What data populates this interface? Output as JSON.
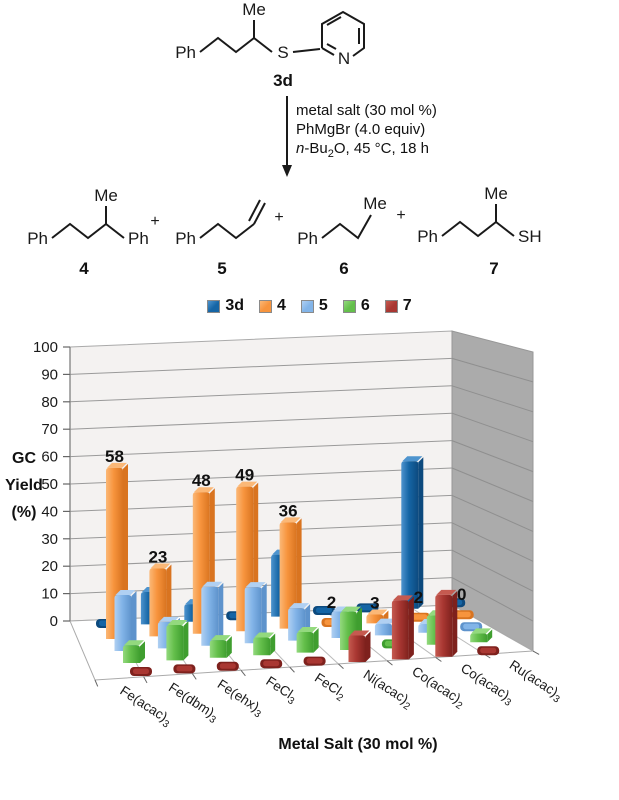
{
  "scheme": {
    "labels": {
      "ph": "Ph",
      "me": "Me",
      "s": "S",
      "n": "N",
      "sh": "SH",
      "plus": "+"
    },
    "substrate_label": "3d",
    "conditions": {
      "line1": "metal salt (30 mol %)",
      "line2": "PhMgBr (4.0 equiv)",
      "line3_italic": "n",
      "line3_mid": "-Bu",
      "line3_sub": "2",
      "line3_rest": "O, 45 °C, 18 h"
    },
    "products": [
      {
        "label": "4"
      },
      {
        "label": "5"
      },
      {
        "label": "6"
      },
      {
        "label": "7"
      }
    ]
  },
  "legend": [
    {
      "label": "3d",
      "color": "#1565a5",
      "light": "#4e94ce"
    },
    {
      "label": "4",
      "color": "#f7943d",
      "light": "#fbb877"
    },
    {
      "label": "5",
      "color": "#82b4e8",
      "light": "#b0d0f2"
    },
    {
      "label": "6",
      "color": "#64bf4b",
      "light": "#93d97e"
    },
    {
      "label": "7",
      "color": "#a93732",
      "light": "#c55a50"
    }
  ],
  "chart_data": {
    "type": "bar",
    "projection": "3d",
    "title": "",
    "ylabel": "GC Yield (%)",
    "ylabel_lines": [
      "GC",
      "Yield",
      "(%)"
    ],
    "xlabel": "Metal Salt (30 mol %)",
    "ylim": [
      0,
      100
    ],
    "ytick_step": 10,
    "grid": true,
    "legend_position": "top",
    "categories": [
      "Fe(acac)3",
      "Fe(dbm)3",
      "Fe(ehx)3",
      "FeCl3",
      "FeCl2",
      "Ni(acac)2",
      "Co(acac)2",
      "Co(acac)3",
      "Ru(acac)3"
    ],
    "categories_rich": [
      {
        "text": "Fe(acac)",
        "sub": "3"
      },
      {
        "text": "Fe(dbm)",
        "sub": "3"
      },
      {
        "text": "Fe(ehx)",
        "sub": "3"
      },
      {
        "text": "FeCl",
        "sub": "3"
      },
      {
        "text": "FeCl",
        "sub": "2"
      },
      {
        "text": "Ni(acac)",
        "sub": "2"
      },
      {
        "text": "Co(acac)",
        "sub": "2"
      },
      {
        "text": "Co(acac)",
        "sub": "3"
      },
      {
        "text": "Ru(acac)",
        "sub": "3"
      }
    ],
    "series": [
      {
        "name": "3d",
        "color": "#1565a5",
        "light": "#4e94ce",
        "dark": "#0d4a7e",
        "labeled": false,
        "values": [
          2,
          11,
          6,
          2,
          21,
          1,
          2,
          50,
          2
        ]
      },
      {
        "name": "4",
        "color": "#f7943d",
        "light": "#fbb877",
        "dark": "#d97420",
        "labeled": true,
        "values": [
          58,
          23,
          48,
          49,
          36,
          2,
          3,
          2,
          0
        ]
      },
      {
        "name": "5",
        "color": "#82b4e8",
        "light": "#b0d0f2",
        "dark": "#5e93cc",
        "labeled": false,
        "values": [
          19,
          9,
          20,
          19,
          11,
          9,
          4,
          3,
          2
        ]
      },
      {
        "name": "6",
        "color": "#64bf4b",
        "light": "#93d97e",
        "dark": "#3f9e2f",
        "labeled": false,
        "values": [
          6,
          12,
          6,
          6,
          7,
          13,
          2,
          10,
          3
        ]
      },
      {
        "name": "7",
        "color": "#a93732",
        "light": "#c55a50",
        "dark": "#7e211d",
        "labeled": false,
        "values": [
          1,
          1,
          1,
          1,
          1,
          9,
          20,
          21,
          2
        ]
      }
    ]
  }
}
